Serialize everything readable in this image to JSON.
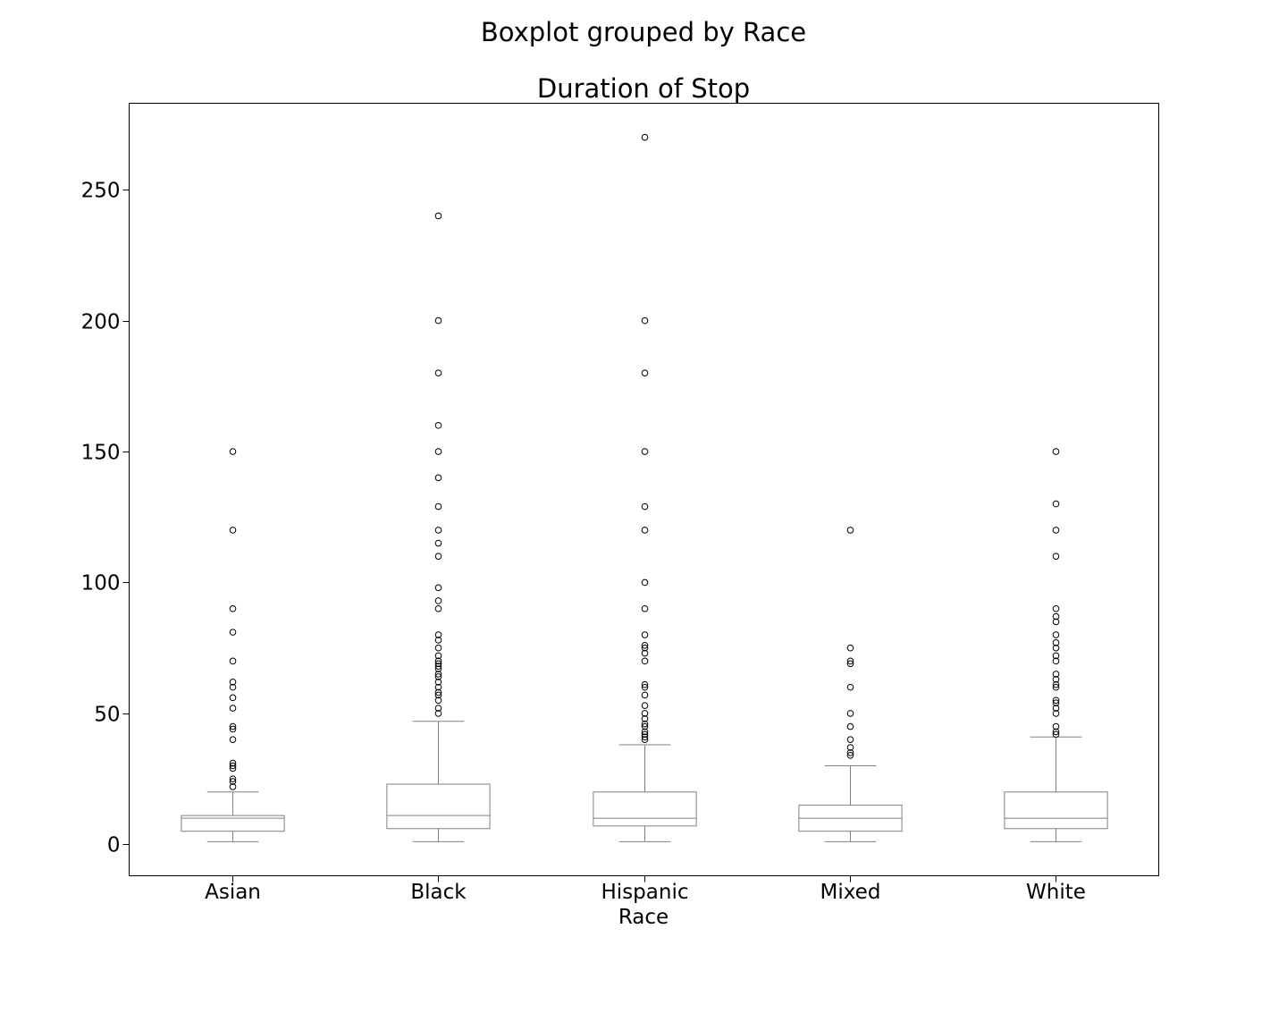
{
  "chart_data": {
    "type": "boxplot",
    "suptitle": "Boxplot grouped by Race",
    "title": "Duration of Stop",
    "xlabel": "Race",
    "ylabel": "",
    "categories": [
      "Asian",
      "Black",
      "Hispanic",
      "Mixed",
      "White"
    ],
    "ylim": [
      -12,
      283
    ],
    "yticks": [
      0,
      50,
      100,
      150,
      200,
      250
    ],
    "grid": false,
    "colors": {
      "box": "#808080",
      "flier": "#000000",
      "frame": "#000000"
    },
    "boxes": [
      {
        "category": "Asian",
        "whisker_low": 1,
        "q1": 5,
        "median": 10,
        "q3": 11,
        "whisker_high": 20,
        "fliers": [
          22,
          24,
          25,
          29,
          30,
          31,
          40,
          44,
          45,
          52,
          56,
          60,
          62,
          70,
          81,
          90,
          120,
          150
        ]
      },
      {
        "category": "Black",
        "whisker_low": 1,
        "q1": 6,
        "median": 11,
        "q3": 23,
        "whisker_high": 47,
        "fliers": [
          50,
          52,
          55,
          57,
          58,
          60,
          62,
          64,
          65,
          67,
          68,
          69,
          70,
          72,
          75,
          78,
          80,
          90,
          93,
          98,
          110,
          115,
          120,
          129,
          140,
          150,
          160,
          180,
          200,
          240
        ]
      },
      {
        "category": "Hispanic",
        "whisker_low": 1,
        "q1": 7,
        "median": 10,
        "q3": 20,
        "whisker_high": 38,
        "fliers": [
          40,
          41,
          42,
          43,
          45,
          46,
          48,
          50,
          53,
          57,
          60,
          61,
          70,
          73,
          75,
          76,
          80,
          90,
          100,
          120,
          129,
          150,
          180,
          200,
          270
        ]
      },
      {
        "category": "Mixed",
        "whisker_low": 1,
        "q1": 5,
        "median": 10,
        "q3": 15,
        "whisker_high": 30,
        "fliers": [
          34,
          35,
          37,
          40,
          45,
          50,
          60,
          69,
          70,
          75,
          120
        ]
      },
      {
        "category": "White",
        "whisker_low": 1,
        "q1": 6,
        "median": 10,
        "q3": 20,
        "whisker_high": 41,
        "fliers": [
          42,
          43,
          45,
          50,
          52,
          54,
          55,
          60,
          61,
          63,
          65,
          70,
          72,
          75,
          77,
          80,
          85,
          87,
          90,
          110,
          120,
          130,
          150
        ]
      }
    ]
  }
}
